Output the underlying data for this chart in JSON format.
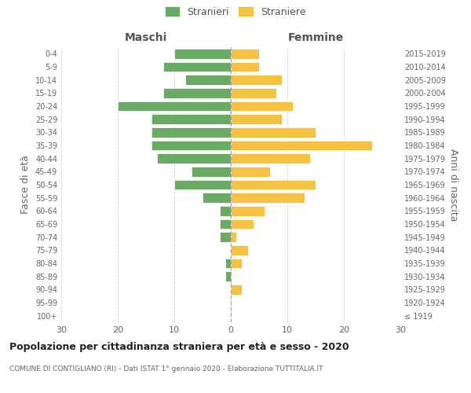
{
  "age_groups": [
    "100+",
    "95-99",
    "90-94",
    "85-89",
    "80-84",
    "75-79",
    "70-74",
    "65-69",
    "60-64",
    "55-59",
    "50-54",
    "45-49",
    "40-44",
    "35-39",
    "30-34",
    "25-29",
    "20-24",
    "15-19",
    "10-14",
    "5-9",
    "0-4"
  ],
  "birth_years": [
    "≤ 1919",
    "1920-1924",
    "1925-1929",
    "1930-1934",
    "1935-1939",
    "1940-1944",
    "1945-1949",
    "1950-1954",
    "1955-1959",
    "1960-1964",
    "1965-1969",
    "1970-1974",
    "1975-1979",
    "1980-1984",
    "1985-1989",
    "1990-1994",
    "1995-1999",
    "2000-2004",
    "2005-2009",
    "2010-2014",
    "2015-2019"
  ],
  "maschi": [
    0,
    0,
    0,
    1,
    1,
    0,
    2,
    2,
    2,
    5,
    10,
    7,
    13,
    14,
    14,
    14,
    20,
    12,
    8,
    12,
    10
  ],
  "femmine": [
    0,
    0,
    2,
    0,
    2,
    3,
    1,
    4,
    6,
    13,
    15,
    7,
    14,
    25,
    15,
    9,
    11,
    8,
    9,
    5,
    5
  ],
  "color_maschi": "#6aaa64",
  "color_femmine": "#f5c244",
  "title": "Popolazione per cittadinanza straniera per età e sesso - 2020",
  "subtitle": "COMUNE DI CONTIGLIANO (RI) - Dati ISTAT 1° gennaio 2020 - Elaborazione TUTTITALIA.IT",
  "xlabel_left": "Maschi",
  "xlabel_right": "Femmine",
  "ylabel_left": "Fasce di età",
  "ylabel_right": "Anni di nascita",
  "legend_maschi": "Stranieri",
  "legend_femmine": "Straniere",
  "xlim": 30,
  "background_color": "#ffffff",
  "grid_color": "#cccccc"
}
